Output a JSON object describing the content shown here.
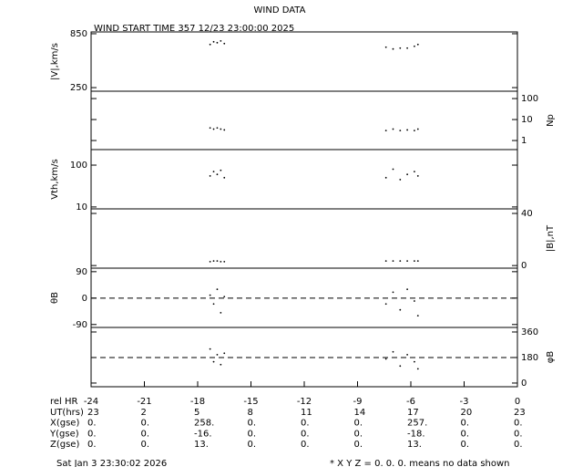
{
  "title": "WIND DATA",
  "subtitle": "WIND START TIME 357 12/23 23:00:00 2025",
  "xaxis": {
    "label": "rel HR",
    "xlim": [
      -24,
      0
    ],
    "xticks": [
      -24,
      -21,
      -18,
      -15,
      -12,
      -9,
      -6,
      -3,
      0
    ]
  },
  "table": {
    "rows": [
      {
        "label": "UT(hrs)",
        "values": [
          "23",
          "2",
          "5",
          "8",
          "11",
          "14",
          "17",
          "20",
          "23"
        ]
      },
      {
        "label": "X(gse)",
        "values": [
          "0.",
          "0.",
          "258.",
          "0.",
          "0.",
          "0.",
          "257.",
          "0.",
          "0."
        ]
      },
      {
        "label": "Y(gse)",
        "values": [
          "0.",
          "0.",
          "-16.",
          "0.",
          "0.",
          "0.",
          "-18.",
          "0.",
          "0."
        ]
      },
      {
        "label": "Z(gse)",
        "values": [
          "0.",
          "0.",
          "13.",
          "0.",
          "0.",
          "0.",
          "13.",
          "0.",
          "0."
        ]
      }
    ]
  },
  "footer": {
    "date": "Sat Jan  3 23:30:02 2026",
    "note": "* X Y Z = 0. 0. 0. means no data shown"
  },
  "chart_data": [
    {
      "type": "scatter",
      "ylabel": "|V|,km/s",
      "axis_side": "left",
      "log": false,
      "ylim": [
        210,
        870
      ],
      "yticks": [
        250,
        850
      ],
      "x": [
        -17.3,
        -17.1,
        -16.9,
        -16.7,
        -16.5,
        -7.4,
        -7.0,
        -6.6,
        -6.2,
        -5.8,
        -5.6
      ],
      "values": [
        730,
        760,
        750,
        770,
        740,
        700,
        680,
        690,
        690,
        710,
        730
      ]
    },
    {
      "type": "scatter",
      "ylabel": "Np",
      "axis_side": "right",
      "log": true,
      "ylim": [
        0.37,
        224
      ],
      "yticks": [
        1,
        10,
        100
      ],
      "x": [
        -17.3,
        -17.1,
        -16.9,
        -16.7,
        -16.5,
        -7.4,
        -7.0,
        -6.6,
        -6.2,
        -5.8,
        -5.6
      ],
      "values": [
        4,
        3.5,
        4,
        3.5,
        3.2,
        3,
        3.5,
        3,
        3.2,
        3,
        3.5
      ]
    },
    {
      "type": "scatter",
      "ylabel": "Vth,km/s",
      "axis_side": "left",
      "log": true,
      "ylim": [
        9,
        235
      ],
      "yticks": [
        10,
        100
      ],
      "x": [
        -17.3,
        -17.1,
        -16.9,
        -16.7,
        -16.5,
        -7.4,
        -7.0,
        -6.6,
        -6.2,
        -5.8,
        -5.6
      ],
      "values": [
        55,
        70,
        60,
        75,
        50,
        50,
        80,
        45,
        60,
        70,
        55
      ]
    },
    {
      "type": "scatter",
      "ylabel": "|B|,nT",
      "axis_side": "right",
      "log": false,
      "ylim": [
        -2,
        43.5
      ],
      "yticks": [
        0,
        40
      ],
      "x": [
        -17.3,
        -17.1,
        -16.9,
        -16.7,
        -16.5,
        -7.4,
        -7.0,
        -6.6,
        -6.2,
        -5.8,
        -5.6
      ],
      "values": [
        3,
        3.5,
        3.5,
        3,
        3,
        3.5,
        3.5,
        3.5,
        3.5,
        3.5,
        3.5
      ]
    },
    {
      "type": "scatter",
      "ylabel": "θB",
      "axis_side": "left",
      "log": false,
      "ylim": [
        -100,
        102
      ],
      "yticks": [
        -90,
        0,
        90
      ],
      "ref_line": 0,
      "x": [
        -17.3,
        -17.1,
        -16.9,
        -16.7,
        -16.5,
        -7.4,
        -7.0,
        -6.6,
        -6.2,
        -5.8,
        -5.6
      ],
      "values": [
        10,
        -20,
        30,
        -50,
        5,
        -20,
        20,
        -40,
        30,
        -10,
        -60
      ]
    },
    {
      "type": "scatter",
      "ylabel": "φB",
      "axis_side": "right",
      "log": false,
      "ylim": [
        -26,
        392
      ],
      "yticks": [
        0,
        180,
        360
      ],
      "ref_line": 180,
      "x": [
        -17.3,
        -17.1,
        -16.9,
        -16.7,
        -16.5,
        -7.4,
        -7.0,
        -6.6,
        -6.2,
        -5.8,
        -5.6
      ],
      "values": [
        240,
        150,
        200,
        130,
        210,
        170,
        220,
        120,
        200,
        150,
        100
      ]
    }
  ]
}
